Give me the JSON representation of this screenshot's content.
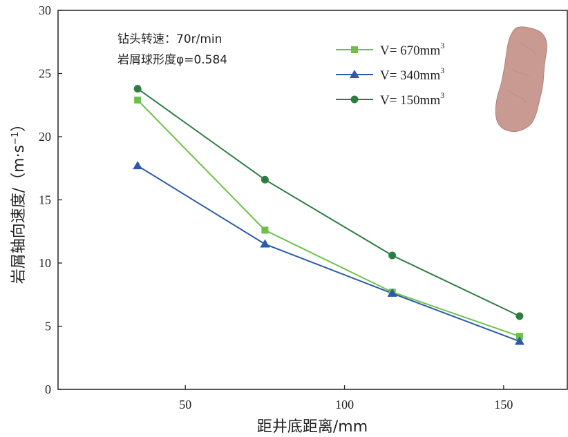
{
  "chart_data": {
    "type": "line",
    "xlabel": "距井底距离/mm",
    "ylabel": "岩屑轴向速度/（m·s",
    "ylabel_sup": "−1",
    "ylabel_close": "）",
    "xlim": [
      10,
      170
    ],
    "ylim": [
      0,
      30
    ],
    "xticks": [
      50,
      100,
      150
    ],
    "yticks": [
      0,
      5,
      10,
      15,
      20,
      25,
      30
    ],
    "annotations": [
      "钻头转速：70r/min",
      "岩屑球形度φ=0.584"
    ],
    "legend_position": "top-right",
    "series": [
      {
        "name": "V= 670mm",
        "name_sup": "3",
        "color": "#6cc04a",
        "marker": "square",
        "points": [
          [
            35,
            22.9
          ],
          [
            75,
            12.6
          ],
          [
            115,
            7.7
          ],
          [
            155,
            4.2
          ]
        ]
      },
      {
        "name": "V= 340mm",
        "name_sup": "3",
        "color": "#2a5aa8",
        "marker": "triangle",
        "points": [
          [
            35,
            17.7
          ],
          [
            75,
            11.5
          ],
          [
            115,
            7.6
          ],
          [
            155,
            3.8
          ]
        ]
      },
      {
        "name": "V= 150mm",
        "name_sup": "3",
        "color": "#2e7d40",
        "marker": "circle",
        "points": [
          [
            35,
            23.8
          ],
          [
            75,
            16.6
          ],
          [
            115,
            10.6
          ],
          [
            155,
            5.8
          ]
        ]
      }
    ]
  },
  "rock_icon": "rock-particle-icon",
  "rock_color": "#c99a92"
}
